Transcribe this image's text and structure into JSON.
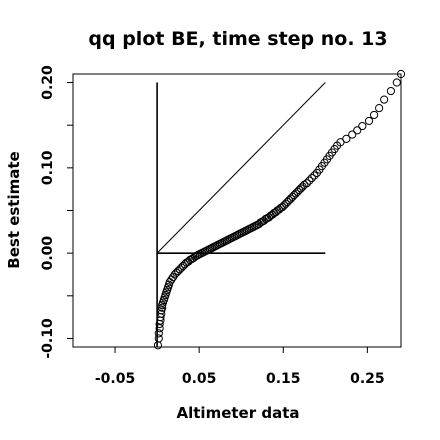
{
  "chart_data": {
    "type": "scatter",
    "title": "qq plot BE, time step no. 13",
    "xlabel": "Altimeter data",
    "ylabel": "Best estimate",
    "xlim": [
      -0.1,
      0.29
    ],
    "ylim": [
      -0.11,
      0.21
    ],
    "x_ticks": [
      -0.05,
      0.05,
      0.15,
      0.25
    ],
    "x_tick_labels": [
      "-0.05",
      "0.05",
      "0.15",
      "0.25"
    ],
    "y_ticks": [
      -0.1,
      0.0,
      0.1,
      0.2
    ],
    "y_tick_labels": [
      "-0.10",
      "0.00",
      "0.10",
      "0.20"
    ],
    "grid": false,
    "marker": "open-circle",
    "reference_lines": [
      {
        "name": "identity",
        "x": [
          0.0,
          0.2
        ],
        "y": [
          0.0,
          0.2
        ]
      },
      {
        "name": "zero-y",
        "x": [
          0.0,
          0.2
        ],
        "y": [
          0.0,
          0.0
        ]
      },
      {
        "name": "zero-x",
        "x": [
          0.0,
          0.0
        ],
        "y": [
          -0.11,
          0.2
        ]
      }
    ],
    "series": [
      {
        "points": [
          [
            0.001,
            -0.108
          ],
          [
            0.002,
            -0.1
          ],
          [
            0.002,
            -0.094
          ],
          [
            0.003,
            -0.088
          ],
          [
            0.003,
            -0.083
          ],
          [
            0.004,
            -0.079
          ],
          [
            0.004,
            -0.075
          ],
          [
            0.005,
            -0.071
          ],
          [
            0.005,
            -0.067
          ],
          [
            0.006,
            -0.064
          ],
          [
            0.006,
            -0.061
          ],
          [
            0.007,
            -0.058
          ],
          [
            0.008,
            -0.055
          ],
          [
            0.009,
            -0.052
          ],
          [
            0.01,
            -0.049
          ],
          [
            0.011,
            -0.046
          ],
          [
            0.012,
            -0.043
          ],
          [
            0.013,
            -0.04
          ],
          [
            0.014,
            -0.037
          ],
          [
            0.015,
            -0.034
          ],
          [
            0.017,
            -0.031
          ],
          [
            0.019,
            -0.028
          ],
          [
            0.021,
            -0.025
          ],
          [
            0.023,
            -0.023
          ],
          [
            0.025,
            -0.021
          ],
          [
            0.027,
            -0.019
          ],
          [
            0.029,
            -0.017
          ],
          [
            0.031,
            -0.015
          ],
          [
            0.033,
            -0.013
          ],
          [
            0.035,
            -0.011
          ],
          [
            0.037,
            -0.01
          ],
          [
            0.039,
            -0.008
          ],
          [
            0.041,
            -0.007
          ],
          [
            0.043,
            -0.006
          ],
          [
            0.045,
            -0.004
          ],
          [
            0.047,
            -0.003
          ],
          [
            0.049,
            -0.002
          ],
          [
            0.051,
            -0.001
          ],
          [
            0.053,
            0.0
          ],
          [
            0.055,
            0.001
          ],
          [
            0.057,
            0.002
          ],
          [
            0.059,
            0.003
          ],
          [
            0.061,
            0.004
          ],
          [
            0.063,
            0.005
          ],
          [
            0.065,
            0.006
          ],
          [
            0.067,
            0.007
          ],
          [
            0.069,
            0.008
          ],
          [
            0.071,
            0.009
          ],
          [
            0.073,
            0.01
          ],
          [
            0.075,
            0.011
          ],
          [
            0.077,
            0.012
          ],
          [
            0.079,
            0.013
          ],
          [
            0.081,
            0.014
          ],
          [
            0.083,
            0.015
          ],
          [
            0.085,
            0.016
          ],
          [
            0.087,
            0.017
          ],
          [
            0.089,
            0.018
          ],
          [
            0.091,
            0.019
          ],
          [
            0.093,
            0.02
          ],
          [
            0.095,
            0.021
          ],
          [
            0.097,
            0.022
          ],
          [
            0.099,
            0.023
          ],
          [
            0.101,
            0.024
          ],
          [
            0.103,
            0.025
          ],
          [
            0.105,
            0.026
          ],
          [
            0.107,
            0.027
          ],
          [
            0.109,
            0.028
          ],
          [
            0.111,
            0.029
          ],
          [
            0.113,
            0.03
          ],
          [
            0.115,
            0.031
          ],
          [
            0.117,
            0.032
          ],
          [
            0.119,
            0.033
          ],
          [
            0.121,
            0.034
          ],
          [
            0.123,
            0.036
          ],
          [
            0.125,
            0.037
          ],
          [
            0.127,
            0.038
          ],
          [
            0.129,
            0.04
          ],
          [
            0.131,
            0.041
          ],
          [
            0.133,
            0.042
          ],
          [
            0.135,
            0.044
          ],
          [
            0.137,
            0.045
          ],
          [
            0.139,
            0.047
          ],
          [
            0.141,
            0.048
          ],
          [
            0.143,
            0.05
          ],
          [
            0.145,
            0.051
          ],
          [
            0.147,
            0.053
          ],
          [
            0.149,
            0.054
          ],
          [
            0.151,
            0.056
          ],
          [
            0.153,
            0.058
          ],
          [
            0.155,
            0.06
          ],
          [
            0.157,
            0.062
          ],
          [
            0.159,
            0.064
          ],
          [
            0.161,
            0.066
          ],
          [
            0.163,
            0.068
          ],
          [
            0.165,
            0.07
          ],
          [
            0.167,
            0.072
          ],
          [
            0.169,
            0.074
          ],
          [
            0.171,
            0.076
          ],
          [
            0.173,
            0.078
          ],
          [
            0.175,
            0.08
          ],
          [
            0.178,
            0.082
          ],
          [
            0.181,
            0.085
          ],
          [
            0.184,
            0.088
          ],
          [
            0.187,
            0.091
          ],
          [
            0.19,
            0.094
          ],
          [
            0.193,
            0.098
          ],
          [
            0.196,
            0.102
          ],
          [
            0.199,
            0.106
          ],
          [
            0.202,
            0.11
          ],
          [
            0.205,
            0.114
          ],
          [
            0.208,
            0.118
          ],
          [
            0.211,
            0.122
          ],
          [
            0.214,
            0.126
          ],
          [
            0.218,
            0.13
          ],
          [
            0.225,
            0.134
          ],
          [
            0.232,
            0.139
          ],
          [
            0.238,
            0.144
          ],
          [
            0.244,
            0.149
          ],
          [
            0.252,
            0.155
          ],
          [
            0.258,
            0.162
          ],
          [
            0.264,
            0.17
          ],
          [
            0.27,
            0.18
          ],
          [
            0.278,
            0.19
          ],
          [
            0.285,
            0.2
          ],
          [
            0.29,
            0.21
          ]
        ]
      }
    ]
  }
}
